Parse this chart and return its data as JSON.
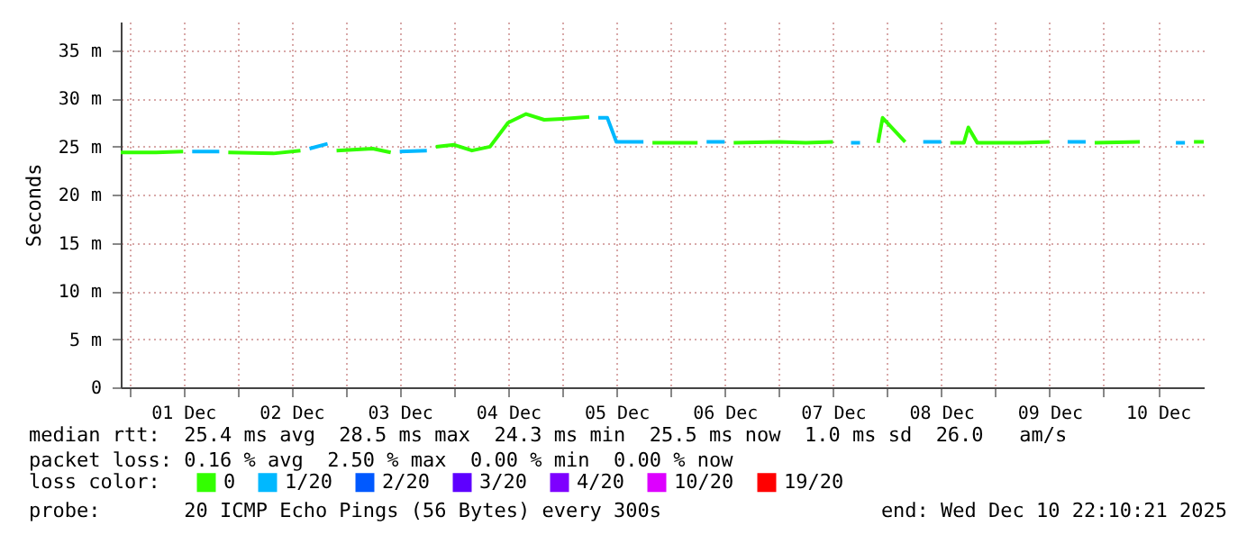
{
  "chart_data": {
    "type": "line",
    "ylabel": "Seconds",
    "legend_title": "loss color:",
    "legend": "bottom",
    "grid": true,
    "x": [
      "2025-11-30T22:10",
      "2025-12-01T06:00",
      "2025-12-01T12:00",
      "2025-12-01T14:00",
      "2025-12-01T20:00",
      "2025-12-01T22:00",
      "2025-12-02T08:00",
      "2025-12-02T14:00",
      "2025-12-02T16:00",
      "2025-12-02T20:00",
      "2025-12-02T22:00",
      "2025-12-03T06:00",
      "2025-12-03T10:00",
      "2025-12-03T12:00",
      "2025-12-03T18:00",
      "2025-12-03T20:00",
      "2025-12-04T00:00",
      "2025-12-04T04:00",
      "2025-12-04T08:00",
      "2025-12-04T12:00",
      "2025-12-04T16:00",
      "2025-12-04T20:00",
      "2025-12-05T00:00",
      "2025-12-05T06:00",
      "2025-12-05T08:00",
      "2025-12-05T10:00",
      "2025-12-05T12:00",
      "2025-12-05T18:00",
      "2025-12-05T20:00",
      "2025-12-06T06:00",
      "2025-12-06T08:00",
      "2025-12-06T12:00",
      "2025-12-06T14:00",
      "2025-12-07T00:00",
      "2025-12-07T06:00",
      "2025-12-07T12:00",
      "2025-12-07T16:00",
      "2025-12-07T18:00",
      "2025-12-07T22:00",
      "2025-12-07T23:00",
      "2025-12-08T02:00",
      "2025-12-08T04:00",
      "2025-12-08T08:00",
      "2025-12-08T12:00",
      "2025-12-08T14:00",
      "2025-12-08T17:00",
      "2025-12-08T18:00",
      "2025-12-08T20:00",
      "2025-12-09T06:00",
      "2025-12-09T12:00",
      "2025-12-09T16:00",
      "2025-12-09T20:00",
      "2025-12-09T22:00",
      "2025-12-10T08:00",
      "2025-12-10T16:00",
      "2025-12-10T18:00",
      "2025-12-10T20:00",
      "2025-12-10T22:10"
    ],
    "series": [
      {
        "name": "0",
        "color": "#33ff00",
        "values": [
          24.4,
          24.4,
          24.5,
          null,
          null,
          24.4,
          24.3,
          24.6,
          null,
          null,
          24.6,
          24.8,
          24.4,
          null,
          null,
          25.0,
          25.2,
          24.6,
          25.0,
          27.5,
          28.4,
          27.8,
          27.9,
          28.1,
          null,
          null,
          null,
          null,
          25.4,
          25.4,
          null,
          null,
          25.4,
          25.5,
          25.4,
          25.5,
          null,
          null,
          25.4,
          28.0,
          26.5,
          25.5,
          null,
          null,
          25.4,
          25.4,
          27.0,
          25.4,
          25.4,
          25.5,
          null,
          null,
          25.4,
          25.5,
          null,
          null,
          25.5,
          25.5
        ]
      },
      {
        "name": "1/20",
        "color": "#00b8ff",
        "values": [
          null,
          null,
          null,
          24.5,
          24.5,
          null,
          null,
          null,
          24.8,
          25.3,
          null,
          null,
          null,
          24.5,
          24.6,
          null,
          null,
          null,
          null,
          null,
          null,
          null,
          null,
          null,
          28.0,
          28.0,
          25.5,
          25.5,
          null,
          null,
          25.5,
          25.5,
          null,
          null,
          null,
          null,
          25.4,
          25.4,
          null,
          null,
          null,
          null,
          25.5,
          25.5,
          null,
          null,
          null,
          null,
          null,
          null,
          25.5,
          25.5,
          null,
          null,
          25.4,
          25.4,
          null,
          null
        ]
      },
      {
        "name": "2/20",
        "color": "#0059ff",
        "values": [
          null,
          null,
          null,
          null,
          null,
          null,
          null,
          null,
          null,
          null,
          null,
          null,
          null,
          null,
          null,
          null,
          null,
          null,
          null,
          null,
          null,
          null,
          null,
          null,
          null,
          null,
          null,
          null,
          null,
          null,
          null,
          null,
          null,
          null,
          null,
          null,
          null,
          null,
          null,
          null,
          null,
          null,
          null,
          null,
          null,
          null,
          null,
          null,
          null,
          null,
          null,
          null,
          null,
          null,
          null,
          null,
          null,
          null
        ]
      },
      {
        "name": "3/20",
        "color": "#5e00ff",
        "values": [
          null,
          null,
          null,
          null,
          null,
          null,
          null,
          null,
          null,
          null,
          null,
          null,
          null,
          null,
          null,
          null,
          null,
          null,
          null,
          null,
          null,
          null,
          null,
          null,
          null,
          null,
          null,
          null,
          null,
          null,
          null,
          null,
          null,
          null,
          null,
          null,
          null,
          null,
          null,
          null,
          null,
          null,
          null,
          null,
          null,
          null,
          null,
          null,
          null,
          null,
          null,
          null,
          null,
          null,
          null,
          null,
          null,
          null
        ]
      },
      {
        "name": "4/20",
        "color": "#7e00ff",
        "values": [
          null,
          null,
          null,
          null,
          null,
          null,
          null,
          null,
          null,
          null,
          null,
          null,
          null,
          null,
          null,
          null,
          null,
          null,
          null,
          null,
          null,
          null,
          null,
          null,
          null,
          null,
          null,
          null,
          null,
          null,
          null,
          null,
          null,
          null,
          null,
          null,
          null,
          null,
          null,
          null,
          null,
          null,
          null,
          null,
          null,
          null,
          null,
          null,
          null,
          null,
          null,
          null,
          null,
          null,
          null,
          null,
          null,
          null
        ]
      },
      {
        "name": "10/20",
        "color": "#dd00ff",
        "values": [
          null,
          null,
          null,
          null,
          null,
          null,
          null,
          null,
          null,
          null,
          null,
          null,
          null,
          null,
          null,
          null,
          null,
          null,
          null,
          null,
          null,
          null,
          null,
          null,
          null,
          null,
          null,
          null,
          null,
          null,
          null,
          null,
          null,
          null,
          null,
          null,
          null,
          null,
          null,
          null,
          null,
          null,
          null,
          null,
          null,
          null,
          null,
          null,
          null,
          null,
          null,
          null,
          null,
          null,
          null,
          null,
          null,
          null
        ]
      },
      {
        "name": "19/20",
        "color": "#ff0000",
        "values": [
          null,
          null,
          null,
          null,
          null,
          null,
          null,
          null,
          null,
          null,
          null,
          null,
          null,
          null,
          null,
          null,
          null,
          null,
          null,
          null,
          null,
          null,
          null,
          null,
          null,
          null,
          null,
          null,
          null,
          null,
          null,
          null,
          null,
          null,
          null,
          null,
          null,
          null,
          null,
          null,
          null,
          null,
          null,
          null,
          null,
          null,
          null,
          null,
          null,
          null,
          null,
          null,
          null,
          null,
          null,
          null,
          null,
          null
        ]
      }
    ],
    "xlim": [
      "2025-11-30T22:10",
      "2025-12-10T22:10"
    ],
    "xticks": [
      {
        "value": "2025-12-01T00:00",
        "label": null
      },
      {
        "value": "2025-12-01T12:00",
        "label": "01 Dec"
      },
      {
        "value": "2025-12-02T00:00",
        "label": null
      },
      {
        "value": "2025-12-02T12:00",
        "label": "02 Dec"
      },
      {
        "value": "2025-12-03T00:00",
        "label": null
      },
      {
        "value": "2025-12-03T12:00",
        "label": "03 Dec"
      },
      {
        "value": "2025-12-04T00:00",
        "label": null
      },
      {
        "value": "2025-12-04T12:00",
        "label": "04 Dec"
      },
      {
        "value": "2025-12-05T00:00",
        "label": null
      },
      {
        "value": "2025-12-05T12:00",
        "label": "05 Dec"
      },
      {
        "value": "2025-12-06T00:00",
        "label": null
      },
      {
        "value": "2025-12-06T12:00",
        "label": "06 Dec"
      },
      {
        "value": "2025-12-07T00:00",
        "label": null
      },
      {
        "value": "2025-12-07T12:00",
        "label": "07 Dec"
      },
      {
        "value": "2025-12-08T00:00",
        "label": null
      },
      {
        "value": "2025-12-08T12:00",
        "label": "08 Dec"
      },
      {
        "value": "2025-12-09T00:00",
        "label": null
      },
      {
        "value": "2025-12-09T12:00",
        "label": "09 Dec"
      },
      {
        "value": "2025-12-10T00:00",
        "label": null
      },
      {
        "value": "2025-12-10T12:00",
        "label": "10 Dec"
      }
    ],
    "ylim": [
      0,
      38
    ],
    "yticks": [
      0,
      {
        "value": 5,
        "label": "5 m"
      },
      {
        "value": 10,
        "label": "10 m"
      },
      {
        "value": 15,
        "label": "15 m"
      },
      {
        "value": 20,
        "label": "20 m"
      },
      {
        "value": 25,
        "label": "25 m"
      },
      {
        "value": 30,
        "label": "30 m"
      },
      {
        "value": 35,
        "label": "35 m"
      }
    ],
    "annotations": [
      "median rtt:  25.4 ms avg  28.5 ms max  24.3 ms min  25.5 ms now  1.0 ms sd  26.0   am/s",
      "packet loss: 0.16 % avg  2.50 % max  0.00 % min  0.00 % now",
      "probe:       20 ICMP Echo Pings (56 Bytes) every 300s",
      "end: Wed Dec 10 22:10:21 2025"
    ]
  }
}
